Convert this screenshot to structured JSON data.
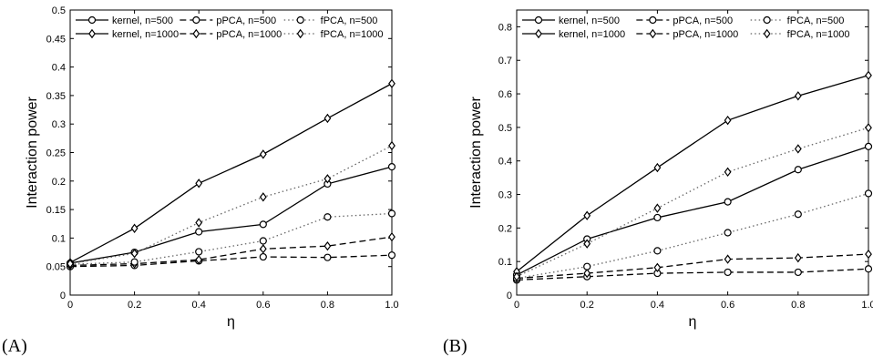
{
  "chart_data": [
    {
      "type": "line",
      "panel_label": "(A)",
      "xlabel": "η",
      "ylabel": "Interaction power",
      "xlim": [
        0,
        1.0
      ],
      "ylim": [
        0,
        0.5
      ],
      "x": [
        0,
        0.2,
        0.4,
        0.6,
        0.8,
        1.0
      ],
      "xticks": [
        "0",
        "0.2",
        "0.4",
        "0.6",
        "0.8",
        "1.0"
      ],
      "yticks": [
        "0",
        "0.05",
        "0.1",
        "0.15",
        "0.2",
        "0.25",
        "0.3",
        "0.35",
        "0.4",
        "0.45",
        "0.5"
      ],
      "yticks_values": [
        0,
        0.05,
        0.1,
        0.15,
        0.2,
        0.25,
        0.3,
        0.35,
        0.4,
        0.45,
        0.5
      ],
      "grid": false,
      "legend_position": "top",
      "series": [
        {
          "name": "kernel, n=500",
          "style": "solid",
          "marker": "circle",
          "values": [
            0.056,
            0.075,
            0.111,
            0.124,
            0.195,
            0.225
          ]
        },
        {
          "name": "kernel, n=1000",
          "style": "solid",
          "marker": "diamond",
          "values": [
            0.057,
            0.117,
            0.196,
            0.247,
            0.31,
            0.371
          ]
        },
        {
          "name": "pPCA, n=500",
          "style": "dashed",
          "marker": "circle",
          "values": [
            0.05,
            0.052,
            0.06,
            0.067,
            0.066,
            0.07
          ]
        },
        {
          "name": "pPCA, n=1000",
          "style": "dashed",
          "marker": "diamond",
          "values": [
            0.052,
            0.055,
            0.062,
            0.081,
            0.086,
            0.102
          ]
        },
        {
          "name": "fPCA, n=500",
          "style": "dotted",
          "marker": "circle",
          "values": [
            0.054,
            0.058,
            0.076,
            0.095,
            0.137,
            0.143
          ]
        },
        {
          "name": "fPCA, n=1000",
          "style": "dotted",
          "marker": "diamond",
          "values": [
            0.055,
            0.073,
            0.127,
            0.172,
            0.204,
            0.262
          ]
        }
      ]
    },
    {
      "type": "line",
      "panel_label": "(B)",
      "xlabel": "η",
      "ylabel": "Interaction power",
      "xlim": [
        0,
        1.0
      ],
      "ylim": [
        0,
        0.85
      ],
      "x": [
        0,
        0.2,
        0.4,
        0.6,
        0.8,
        1.0
      ],
      "xticks": [
        "0",
        "0.2",
        "0.4",
        "0.6",
        "0.8",
        "1.0"
      ],
      "yticks": [
        "0",
        "0.1",
        "0.2",
        "0.3",
        "0.4",
        "0.5",
        "0.6",
        "0.7",
        "0.8"
      ],
      "yticks_values": [
        0,
        0.1,
        0.2,
        0.3,
        0.4,
        0.5,
        0.6,
        0.7,
        0.8
      ],
      "grid": false,
      "legend_position": "top",
      "series": [
        {
          "name": "kernel, n=500",
          "style": "solid",
          "marker": "circle",
          "values": [
            0.06,
            0.167,
            0.231,
            0.278,
            0.374,
            0.443
          ]
        },
        {
          "name": "kernel, n=1000",
          "style": "solid",
          "marker": "diamond",
          "values": [
            0.07,
            0.237,
            0.38,
            0.521,
            0.594,
            0.655
          ]
        },
        {
          "name": "pPCA, n=500",
          "style": "dashed",
          "marker": "circle",
          "values": [
            0.045,
            0.055,
            0.065,
            0.068,
            0.068,
            0.078
          ]
        },
        {
          "name": "pPCA, n=1000",
          "style": "dashed",
          "marker": "diamond",
          "values": [
            0.05,
            0.065,
            0.082,
            0.107,
            0.111,
            0.122
          ]
        },
        {
          "name": "fPCA, n=500",
          "style": "dotted",
          "marker": "circle",
          "values": [
            0.05,
            0.085,
            0.132,
            0.186,
            0.241,
            0.303
          ]
        },
        {
          "name": "fPCA, n=1000",
          "style": "dotted",
          "marker": "diamond",
          "values": [
            0.055,
            0.153,
            0.259,
            0.367,
            0.436,
            0.499
          ]
        }
      ]
    }
  ]
}
